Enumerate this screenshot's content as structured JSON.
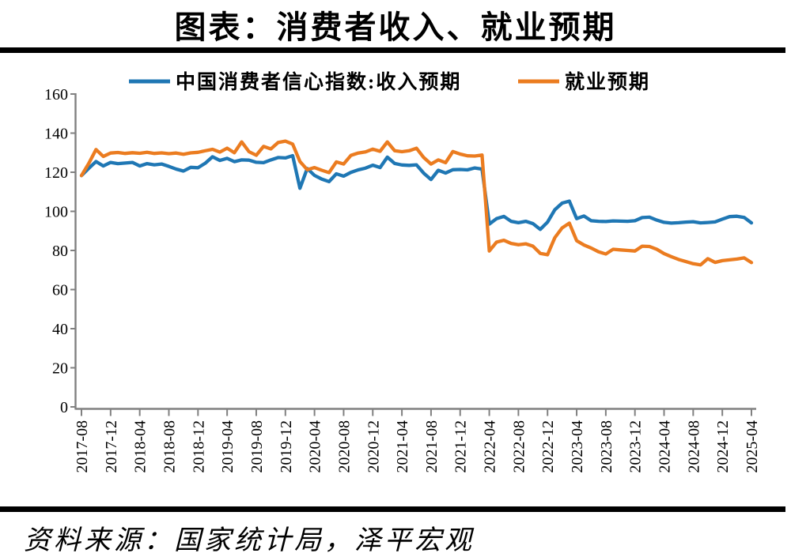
{
  "title": "图表：消费者收入、就业预期",
  "source": "资料来源：国家统计局，泽平宏观",
  "colors": {
    "income_line": "#1F77B4",
    "employment_line": "#EB7C20",
    "axis": "#808080",
    "rule": "#000000"
  },
  "chart_data": {
    "type": "line",
    "title": "图表：消费者收入、就业预期",
    "xlabel": "",
    "ylabel": "",
    "ylim": [
      0,
      160
    ],
    "y_ticks": [
      0,
      20,
      40,
      60,
      80,
      100,
      120,
      140,
      160
    ],
    "grid": false,
    "legend_position": "top",
    "x_start": "2017-08",
    "x_end": "2025-04",
    "x_frequency": "monthly",
    "x_tick_labels": [
      "2017-08",
      "2017-12",
      "2018-04",
      "2018-08",
      "2018-12",
      "2019-04",
      "2019-08",
      "2019-12",
      "2020-04",
      "2020-08",
      "2020-12",
      "2021-04",
      "2021-08",
      "2021-12",
      "2022-04",
      "2022-08",
      "2022-12",
      "2023-04",
      "2023-08",
      "2023-12",
      "2024-04",
      "2024-08",
      "2024-12",
      "2025-04"
    ],
    "series": [
      {
        "name": "中国消费者信心指数:收入预期",
        "color": "#1F77B4",
        "values": [
          118.3,
          122.0,
          125.5,
          123.2,
          125.0,
          124.4,
          124.7,
          125.0,
          123.2,
          124.4,
          123.8,
          124.2,
          123.0,
          121.6,
          120.6,
          122.5,
          122.3,
          124.6,
          127.9,
          126.0,
          127.1,
          125.4,
          126.3,
          126.2,
          125.1,
          124.9,
          126.3,
          127.5,
          127.3,
          128.5,
          111.8,
          121.9,
          118.4,
          116.5,
          115.2,
          119.2,
          118.0,
          119.9,
          121.2,
          122.1,
          123.6,
          122.4,
          127.7,
          124.5,
          123.7,
          123.5,
          123.8,
          119.5,
          116.3,
          121.0,
          119.6,
          121.3,
          121.4,
          121.2,
          122.2,
          121.6,
          93.5,
          96.3,
          97.4,
          94.9,
          94.2,
          94.9,
          93.7,
          90.8,
          94.5,
          100.8,
          104.2,
          105.2,
          96.3,
          97.6,
          95.2,
          94.9,
          94.8,
          95.1,
          95.0,
          94.9,
          95.2,
          96.8,
          97.0,
          95.5,
          94.4,
          94.0,
          94.2,
          94.5,
          94.7,
          94.1,
          94.3,
          94.6,
          96.0,
          97.3,
          97.5,
          96.9,
          94.1
        ]
      },
      {
        "name": "就业预期",
        "color": "#EB7C20",
        "values": [
          118.3,
          124.5,
          131.6,
          128.1,
          129.8,
          130.1,
          129.6,
          130.0,
          129.7,
          130.2,
          129.6,
          129.9,
          129.5,
          129.8,
          129.2,
          129.9,
          130.2,
          131.0,
          131.7,
          130.3,
          132.3,
          130.0,
          135.5,
          130.5,
          128.7,
          133.2,
          131.9,
          135.2,
          135.9,
          134.4,
          125.5,
          121.3,
          122.4,
          121.0,
          119.8,
          125.3,
          124.2,
          128.6,
          129.8,
          130.4,
          131.8,
          130.7,
          135.5,
          131.0,
          130.5,
          131.0,
          132.3,
          127.5,
          124.2,
          126.3,
          124.9,
          130.6,
          129.3,
          128.4,
          128.3,
          128.8,
          79.7,
          84.3,
          85.2,
          83.6,
          82.9,
          83.4,
          82.2,
          78.5,
          77.8,
          86.5,
          91.5,
          94.0,
          85.0,
          82.8,
          81.2,
          79.3,
          78.2,
          80.6,
          80.3,
          80.0,
          79.7,
          82.2,
          82.0,
          80.6,
          78.4,
          76.8,
          75.4,
          74.3,
          73.2,
          72.6,
          75.8,
          73.9,
          74.8,
          75.2,
          75.6,
          76.2,
          73.8
        ]
      }
    ]
  }
}
